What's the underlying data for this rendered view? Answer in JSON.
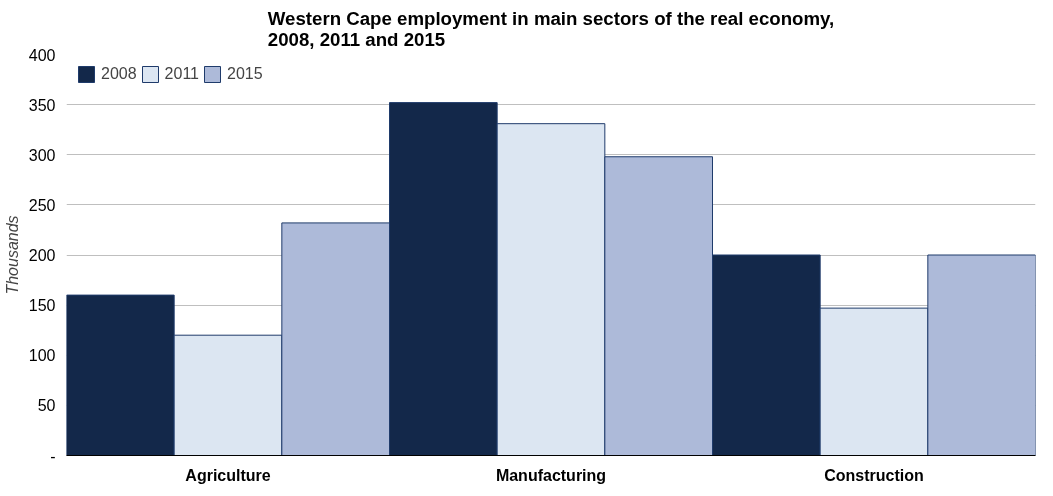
{
  "chart_data": {
    "type": "bar",
    "title": "Western Cape employment in main sectors of the real economy,\n2008, 2011 and 2015",
    "ylabel": "Thousands",
    "categories": [
      "Agriculture",
      "Manufacturing",
      "Construction"
    ],
    "series": [
      {
        "name": "2008",
        "color": "#13284a",
        "values": [
          160,
          352,
          200
        ]
      },
      {
        "name": "2011",
        "color": "#dce6f2",
        "values": [
          120,
          331,
          147
        ]
      },
      {
        "name": "2015",
        "color": "#adbad9",
        "values": [
          232,
          298,
          200
        ]
      }
    ],
    "ylim": [
      0,
      400
    ],
    "yticks": [
      {
        "value": 0,
        "label": "-"
      },
      50,
      100,
      150,
      200,
      250,
      300,
      350,
      400
    ],
    "grid": "y",
    "legend": "top"
  }
}
